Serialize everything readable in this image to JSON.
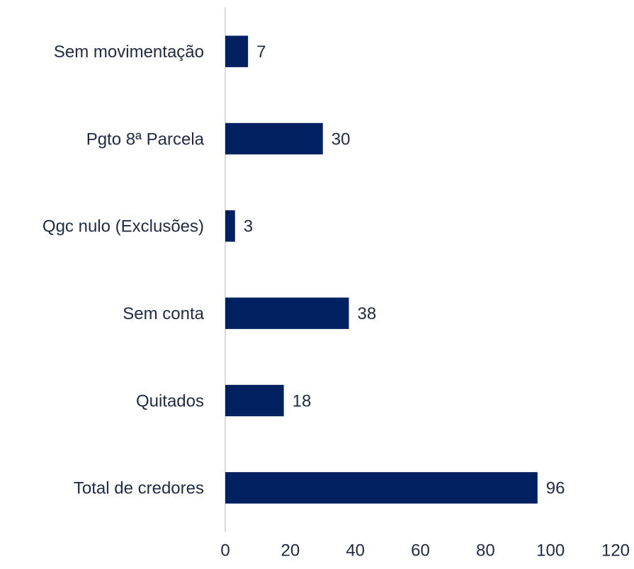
{
  "chart_data": {
    "type": "bar",
    "orientation": "horizontal",
    "categories": [
      "Sem movimentação",
      "Pgto 8ª Parcela",
      "Qgc nulo (Exclusões)",
      "Sem conta",
      "Quitados",
      "Total de credores"
    ],
    "values": [
      7,
      30,
      3,
      38,
      18,
      96
    ],
    "color": "#002060",
    "xlim": [
      0,
      120
    ],
    "xticks": [
      0,
      20,
      40,
      60,
      80,
      100,
      120
    ],
    "grid": false
  }
}
